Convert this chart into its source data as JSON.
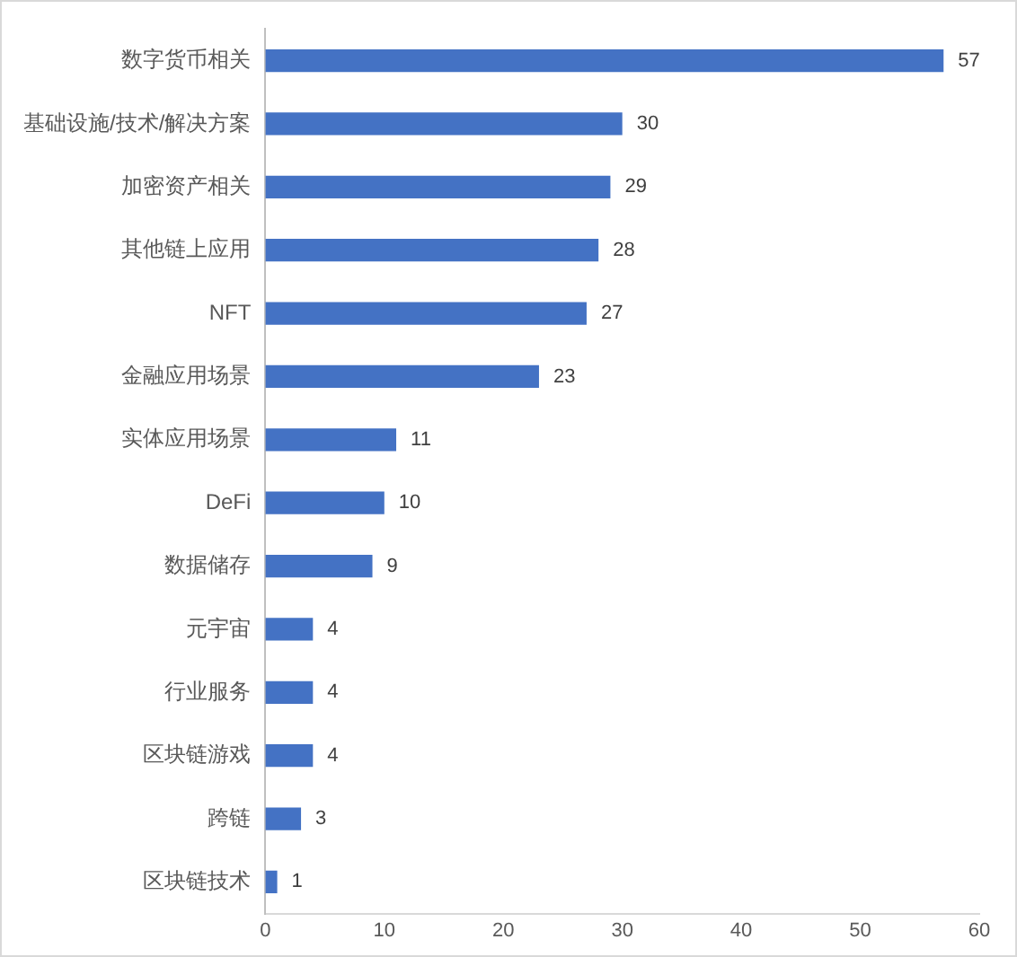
{
  "chart_data": {
    "type": "bar",
    "orientation": "horizontal",
    "categories": [
      "数字货币相关",
      "基础设施/技术/解决方案",
      "加密资产相关",
      "其他链上应用",
      "NFT",
      "金融应用场景",
      "实体应用场景",
      "DeFi",
      "数据储存",
      "元宇宙",
      "行业服务",
      "区块链游戏",
      "跨链",
      "区块链技术"
    ],
    "values": [
      57,
      30,
      29,
      28,
      27,
      23,
      11,
      10,
      9,
      4,
      4,
      4,
      3,
      1
    ],
    "color": "#4472c4",
    "xlim": [
      0,
      60
    ],
    "xticks": [
      0,
      10,
      20,
      30,
      40,
      50,
      60
    ],
    "grid": false,
    "data_labels": true
  }
}
